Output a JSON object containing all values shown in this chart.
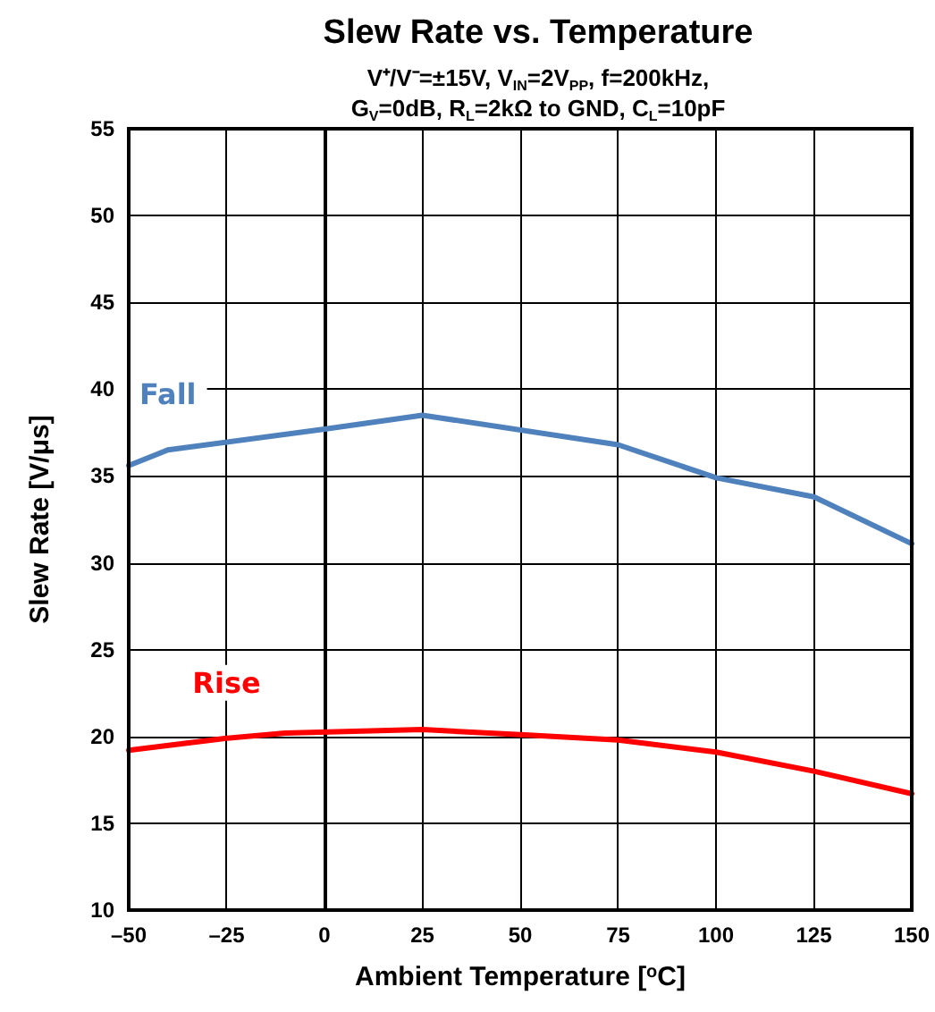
{
  "chart_data": {
    "type": "line",
    "title": "Slew Rate vs. Temperature",
    "subtitle": "V⁺/V⁻=±15V, V$_{IN}$=2V$_{PP}$, f=200kHz,\nG$_{V}$=0dB, R$_{L}$=2kΩ to GND, C$_{L}$=10pF",
    "xlabel": "Ambient Temperature [$^{o}$C]",
    "ylabel": "Slew Rate [V/μs]",
    "series": [
      {
        "name": "Fall",
        "color": "#4f81bd",
        "x": [
          -50,
          -40,
          0,
          25,
          75,
          100,
          125,
          150
        ],
        "values": [
          35.6,
          36.5,
          37.7,
          38.5,
          36.8,
          34.9,
          33.8,
          31.1
        ]
      },
      {
        "name": "Rise",
        "color": "#ff0000",
        "x": [
          -50,
          -25,
          -10,
          25,
          50,
          75,
          100,
          125,
          150
        ],
        "values": [
          19.2,
          19.9,
          20.2,
          20.4,
          20.1,
          19.8,
          19.1,
          18.0,
          16.7
        ]
      }
    ],
    "xlim": [
      -50,
      150
    ],
    "xticks": [
      {
        "value": -50,
        "label": "–50"
      },
      {
        "value": -25,
        "label": "–25"
      },
      0,
      25,
      50,
      75,
      100,
      125,
      150
    ],
    "ylim": [
      10,
      55
    ],
    "yticks": [
      10,
      15,
      20,
      25,
      30,
      35,
      40,
      45,
      50,
      55
    ],
    "grid": true,
    "legend": false,
    "marker": "none",
    "line_style": "solid"
  }
}
